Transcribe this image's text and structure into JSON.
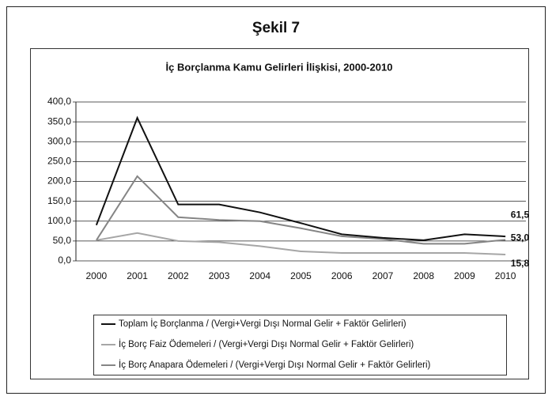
{
  "header": {
    "title": "Şekil 7"
  },
  "chart_data": {
    "type": "line",
    "title": "İç Borçlanma Kamu Gelirleri İlişkisi, 2000-2010",
    "categories": [
      "2000",
      "2001",
      "2002",
      "2003",
      "2004",
      "2005",
      "2006",
      "2007",
      "2008",
      "2009",
      "2010"
    ],
    "series": [
      {
        "name": "Toplam İç Borçlanma / (Vergi+Vergi Dışı Normal Gelir + Faktör Gelirleri)",
        "color": "#111111",
        "values": [
          90,
          360,
          142,
          142,
          122,
          95,
          67,
          58,
          52,
          67,
          61.5
        ],
        "value_labels": [
          null,
          null,
          null,
          null,
          null,
          null,
          null,
          null,
          null,
          null,
          "61,5"
        ]
      },
      {
        "name": "İç Borç Faiz Ödemeleri / (Vergi+Vergi Dışı Normal Gelir + Faktör Gelirleri)",
        "color": "#a6a6a6",
        "values": [
          52,
          70,
          50,
          47,
          37,
          24,
          20,
          20,
          20,
          20,
          15.8
        ],
        "value_labels": [
          null,
          null,
          null,
          null,
          null,
          null,
          null,
          null,
          null,
          null,
          "15,8"
        ]
      },
      {
        "name": "İç Borç Anapara Ödemeleri / (Vergi+Vergi Dışı Normal Gelir + Faktör Gelirleri)",
        "color": "#858585",
        "values": [
          52,
          213,
          110,
          103,
          100,
          82,
          62,
          55,
          43,
          43,
          53.0
        ],
        "value_labels": [
          null,
          null,
          null,
          null,
          null,
          null,
          null,
          null,
          null,
          null,
          "53,0"
        ]
      }
    ],
    "ylim": [
      0,
      400
    ],
    "yticks": [
      {
        "value": 0,
        "label": "0,0"
      },
      {
        "value": 50,
        "label": "50,0"
      },
      {
        "value": 100,
        "label": "100,0"
      },
      {
        "value": 150,
        "label": "150,0"
      },
      {
        "value": 200,
        "label": "200,0"
      },
      {
        "value": 250,
        "label": "250,0"
      },
      {
        "value": 300,
        "label": "300,0"
      },
      {
        "value": 350,
        "label": "350,0"
      },
      {
        "value": 400,
        "label": "400,0"
      }
    ],
    "grid": true,
    "legend": "bottom"
  }
}
